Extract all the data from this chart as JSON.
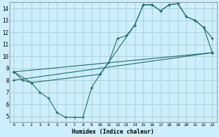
{
  "title": "",
  "xlabel": "Humidex (Indice chaleur)",
  "background_color": "#cceeff",
  "grid_color": "#aacccc",
  "line_color": "#1a6b6b",
  "xlim": [
    -0.5,
    23.5
  ],
  "ylim": [
    4.5,
    14.5
  ],
  "xticks": [
    0,
    1,
    2,
    3,
    4,
    5,
    6,
    7,
    8,
    9,
    10,
    11,
    12,
    13,
    14,
    15,
    16,
    17,
    18,
    19,
    20,
    21,
    22,
    23
  ],
  "yticks": [
    5,
    6,
    7,
    8,
    9,
    10,
    11,
    12,
    13,
    14
  ],
  "line1_x": [
    0,
    1,
    2,
    3,
    4,
    5,
    6,
    7,
    8,
    9,
    10,
    11,
    12,
    13,
    14,
    15,
    16,
    17,
    18,
    19,
    20,
    21,
    22,
    23
  ],
  "line1_y": [
    8.7,
    8.0,
    7.8,
    7.0,
    6.5,
    5.3,
    4.9,
    4.9,
    4.9,
    7.4,
    8.5,
    9.5,
    11.5,
    11.7,
    12.6,
    14.3,
    14.3,
    13.8,
    14.3,
    14.4,
    13.3,
    13.0,
    12.4,
    11.5
  ],
  "line2_x": [
    0,
    2,
    10,
    14,
    15,
    16,
    17,
    18,
    19,
    20,
    21,
    22,
    23
  ],
  "line2_y": [
    8.7,
    7.8,
    8.5,
    12.6,
    14.3,
    14.3,
    13.8,
    14.3,
    14.4,
    13.3,
    13.0,
    12.4,
    10.3
  ],
  "line3_x": [
    0,
    23
  ],
  "line3_y": [
    8.0,
    10.3
  ],
  "line4_x": [
    0,
    23
  ],
  "line4_y": [
    8.7,
    10.3
  ]
}
